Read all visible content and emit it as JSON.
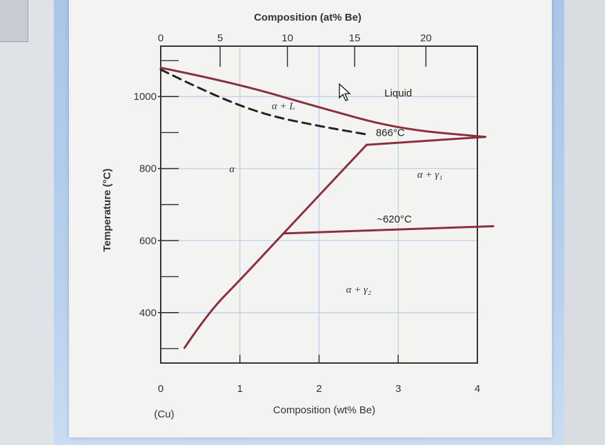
{
  "chart_data": {
    "type": "line",
    "title": "",
    "top_axis": {
      "label": "Composition (at% Be)",
      "ticks": [
        "0",
        "5",
        "10",
        "15",
        "20"
      ]
    },
    "bottom_axis": {
      "label": "Composition (wt% Be)",
      "ticks": [
        "0",
        "1",
        "2",
        "3",
        "4"
      ],
      "range": [
        0,
        4
      ],
      "end_label": "(Cu)"
    },
    "y_axis": {
      "label": "Temperature (°C)",
      "ticks": [
        "400",
        "600",
        "800",
        "1000"
      ],
      "range": [
        260,
        1140
      ]
    },
    "grid": true,
    "series": [
      {
        "name": "liquidus",
        "style": "solid",
        "points": [
          [
            0,
            1080
          ],
          [
            0.9,
            1040
          ],
          [
            2.0,
            970
          ],
          [
            3.0,
            910
          ],
          [
            4.1,
            888
          ]
        ]
      },
      {
        "name": "solidus",
        "style": "dashed",
        "points": [
          [
            0,
            1075
          ],
          [
            0.6,
            1010
          ],
          [
            1.3,
            950
          ],
          [
            2.0,
            918
          ],
          [
            2.6,
            895
          ]
        ]
      },
      {
        "name": "alpha solvus",
        "style": "solid",
        "points": [
          [
            0.3,
            302
          ],
          [
            0.6,
            400
          ],
          [
            1.0,
            490
          ],
          [
            1.55,
            620
          ],
          [
            2.6,
            866
          ]
        ]
      },
      {
        "name": "866 °C line",
        "style": "solid",
        "points": [
          [
            2.6,
            866
          ],
          [
            4.1,
            888
          ]
        ]
      },
      {
        "name": "620 °C line",
        "style": "solid",
        "points": [
          [
            1.55,
            620
          ],
          [
            4.2,
            640
          ]
        ]
      }
    ],
    "annotations": [
      {
        "text": "Liquid",
        "x": 3.0,
        "y": 1000
      },
      {
        "text": "α + L",
        "x": 1.55,
        "y": 965
      },
      {
        "text": "866°C",
        "x": 2.9,
        "y": 890
      },
      {
        "text": "α",
        "x": 0.9,
        "y": 790
      },
      {
        "text": "α + γ₁",
        "x": 3.4,
        "y": 775
      },
      {
        "text": "~620°C",
        "x": 2.95,
        "y": 650
      },
      {
        "text": "α + γ₂",
        "x": 2.5,
        "y": 455
      }
    ]
  },
  "colors": {
    "curve": "#8b2f3f",
    "grid": "#bcd0ea",
    "axis": "#333333"
  }
}
